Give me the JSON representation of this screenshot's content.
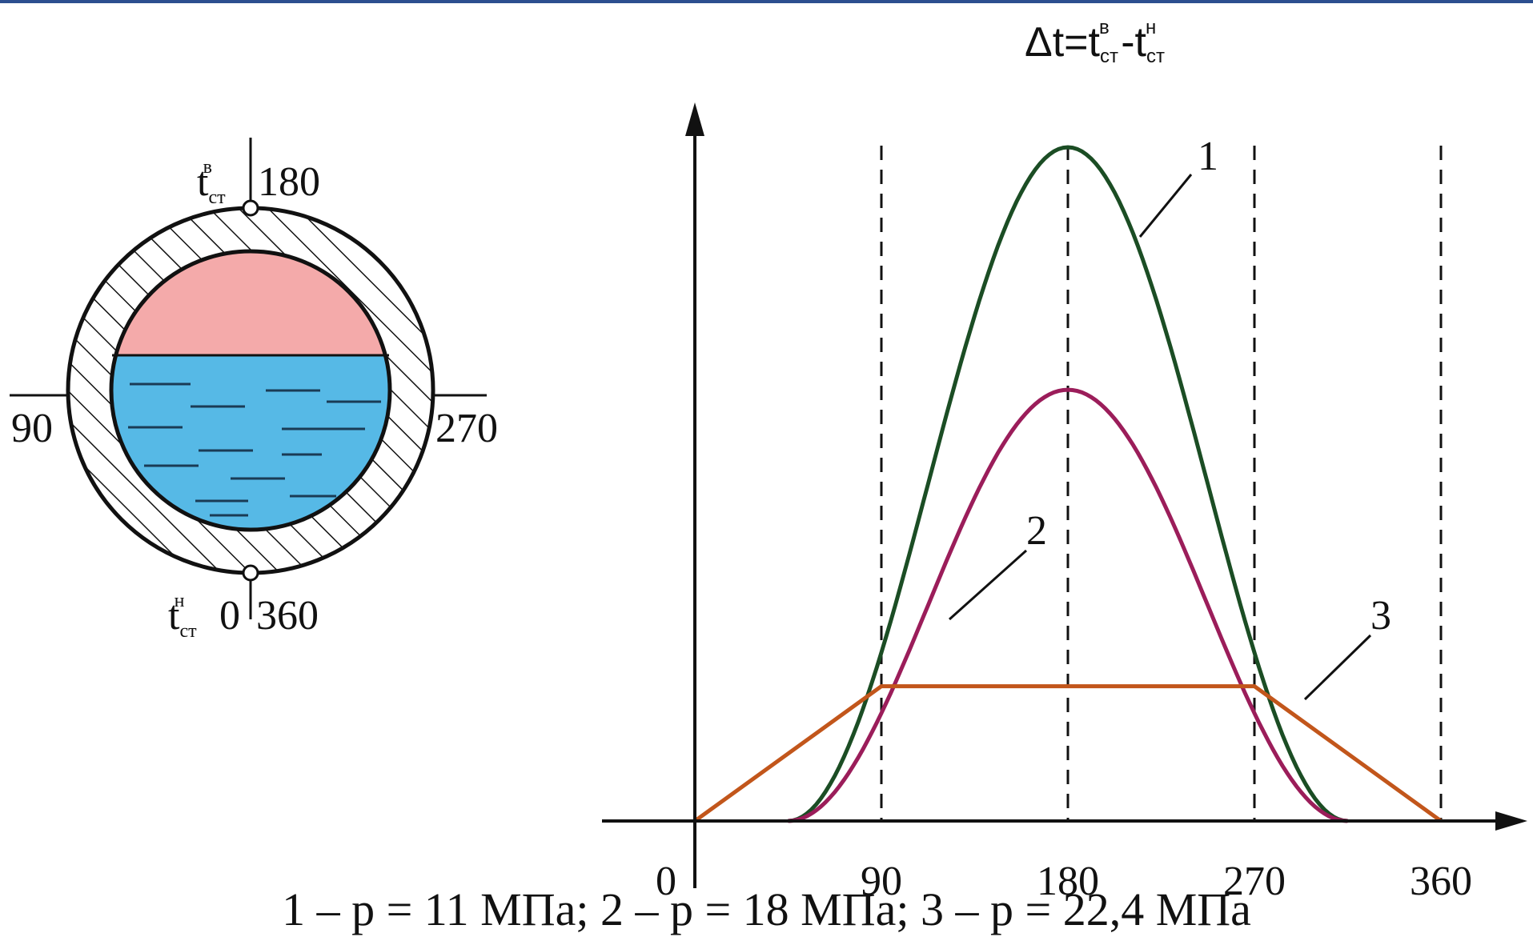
{
  "title": {
    "prefix": "Δt=t",
    "sub1": "ст",
    "sup1": "в",
    "mid": " -t",
    "sub2": "ст",
    "sup2": "н"
  },
  "pipe": {
    "labels": {
      "top": "180",
      "left": "90",
      "right": "270",
      "bottom": "0",
      "bottom2": "360"
    },
    "t_top": {
      "base": "t",
      "sub": "ст",
      "sup": "в"
    },
    "t_bottom": {
      "base": "t",
      "sub": "ст",
      "sup": "н"
    },
    "colors": {
      "steam": "#f4aaaa",
      "water": "#56b9e6",
      "wall": "#111111"
    }
  },
  "chart_data": {
    "type": "line",
    "x_ticks": [
      "0",
      "90",
      "180",
      "270",
      "360"
    ],
    "xlim": [
      0,
      360
    ],
    "series": [
      {
        "name": "1",
        "color": "#1b4d24",
        "x": [
          45,
          90,
          135,
          180,
          225,
          270,
          315
        ],
        "y": [
          0,
          0.28,
          0.78,
          1.0,
          0.78,
          0.28,
          0
        ]
      },
      {
        "name": "2",
        "color": "#9b1d5a",
        "x": [
          45,
          90,
          135,
          180,
          225,
          270,
          315
        ],
        "y": [
          0,
          0.17,
          0.5,
          0.64,
          0.5,
          0.17,
          0
        ]
      },
      {
        "name": "3",
        "color": "#c2561b",
        "x": [
          0,
          90,
          270,
          360
        ],
        "y": [
          0,
          0.2,
          0.2,
          0
        ]
      }
    ]
  },
  "caption": "1 – p = 11 МПа; 2 – p = 18 МПа; 3 – p = 22,4 МПа"
}
